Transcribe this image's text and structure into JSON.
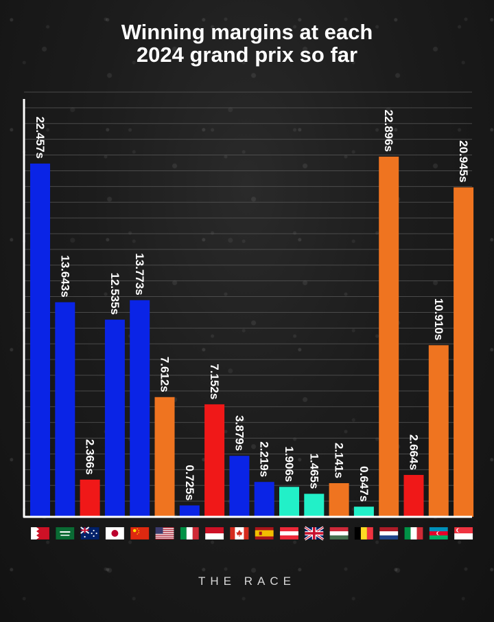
{
  "header": {
    "title_line1": "Winning margins at each",
    "title_line2": "2024 grand prix so far"
  },
  "footer": {
    "brand": "THE RACE"
  },
  "colors": {
    "blue": "#0a24e6",
    "red": "#f01818",
    "orange": "#ef7420",
    "teal": "#22f0c8",
    "grid": "#5a5a5a",
    "axis": "#ffffff"
  },
  "chart_data": {
    "type": "bar",
    "title": "Winning margins at each 2024 grand prix so far",
    "xlabel": "",
    "ylabel": "",
    "ylim": [
      0,
      27
    ],
    "grid": true,
    "legend": "none",
    "categories": [
      "Bahrain",
      "Saudi Arabia",
      "Australia",
      "Japan",
      "China",
      "USA",
      "Italy",
      "Monaco",
      "Canada",
      "Spain",
      "Austria",
      "UK",
      "Hungary",
      "Belgium",
      "Netherlands",
      "Italy",
      "Azerbaijan",
      "Singapore"
    ],
    "values": [
      22.457,
      13.643,
      2.366,
      12.535,
      13.773,
      7.612,
      0.725,
      7.152,
      3.879,
      2.219,
      1.906,
      1.465,
      2.141,
      0.647,
      22.896,
      2.664,
      10.91,
      20.945
    ],
    "labels": [
      "22.457s",
      "13.643s",
      "2.366s",
      "12.535s",
      "13.773s",
      "7.612s",
      "0.725s",
      "7.152s",
      "3.879s",
      "2.219s",
      "1.906s",
      "1.465s",
      "2.141s",
      "0.647s",
      "22.896s",
      "2.664s",
      "10.910s",
      "20.945s"
    ],
    "bar_colors": [
      "blue",
      "blue",
      "red",
      "blue",
      "blue",
      "orange",
      "blue",
      "red",
      "blue",
      "blue",
      "teal",
      "teal",
      "orange",
      "teal",
      "orange",
      "red",
      "orange",
      "orange"
    ],
    "flags": [
      "bahrain-flag",
      "saudi-arabia-flag",
      "australia-flag",
      "japan-flag",
      "china-flag",
      "usa-flag",
      "italy-flag",
      "monaco-flag",
      "canada-flag",
      "spain-flag",
      "austria-flag",
      "uk-flag",
      "hungary-flag",
      "belgium-flag",
      "netherlands-flag",
      "italy-flag",
      "azerbaijan-flag",
      "singapore-flag"
    ]
  }
}
